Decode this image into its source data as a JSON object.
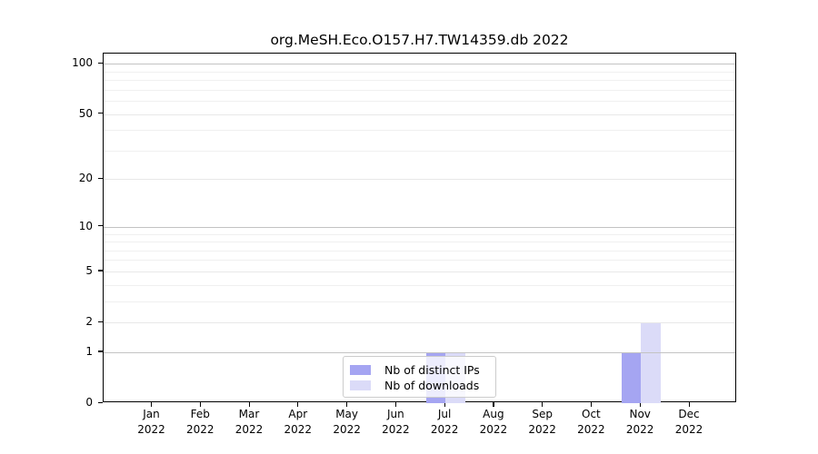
{
  "figure": {
    "title": "org.MeSH.Eco.O157.H7.TW14359.db 2022"
  },
  "legend": {
    "items": [
      {
        "label": "Nb of distinct IPs",
        "color": "#a5a5f2"
      },
      {
        "label": "Nb of downloads",
        "color": "#dbdbf8"
      }
    ]
  },
  "chart_data": {
    "type": "bar",
    "title": "org.MeSH.Eco.O157.H7.TW14359.db 2022",
    "x_year": "2022",
    "categories": [
      "Jan",
      "Feb",
      "Mar",
      "Apr",
      "May",
      "Jun",
      "Jul",
      "Aug",
      "Sep",
      "Oct",
      "Nov",
      "Dec"
    ],
    "series": [
      {
        "name": "Nb of distinct IPs",
        "color": "#a5a5f2",
        "values": [
          0,
          0,
          0,
          0,
          0,
          0,
          1,
          0,
          0,
          0,
          1,
          0
        ]
      },
      {
        "name": "Nb of downloads",
        "color": "#dbdbf8",
        "values": [
          0,
          0,
          0,
          0,
          0,
          0,
          1,
          0,
          0,
          0,
          2,
          0
        ]
      }
    ],
    "yscale": "log10(1+v)",
    "yticks": [
      0,
      1,
      2,
      5,
      10,
      20,
      50,
      100
    ],
    "yticks_minor": [
      3,
      4,
      6,
      7,
      8,
      9,
      30,
      40,
      60,
      70,
      80,
      90
    ],
    "ylim": [
      0,
      115
    ],
    "grid": "horizontal",
    "legend_position": "inside-bottom-center",
    "grid_colors": {
      "decade": "#c3c3c3",
      "major": "#e8e8e8",
      "minor": "#f0f0f0"
    }
  }
}
